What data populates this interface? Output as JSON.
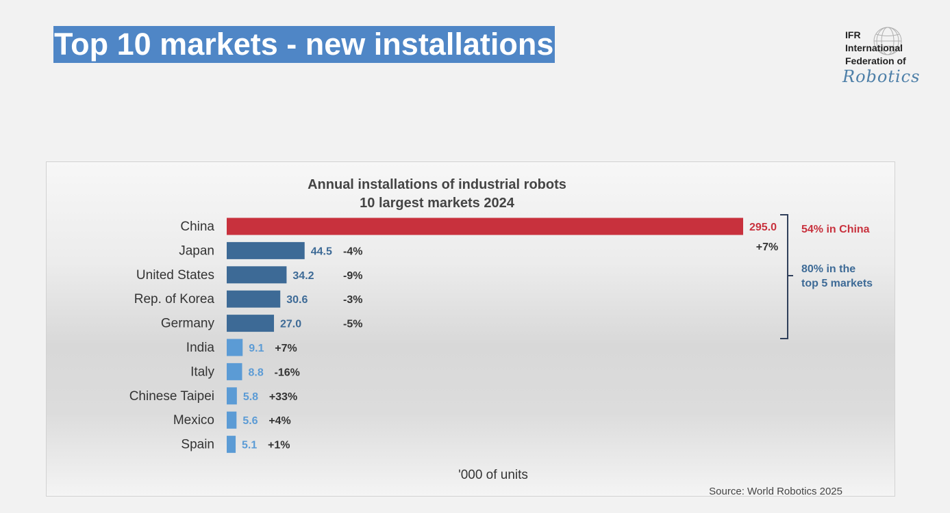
{
  "slide": {
    "title": "Top 10 markets - new installations"
  },
  "logo": {
    "line1": "IFR",
    "line2": "International",
    "line3": "Federation of",
    "line4": "Robotics"
  },
  "colors": {
    "title_bg": "#4f86c6",
    "china_bar": "#c8313d",
    "top5_bar": "#3d6a96",
    "rest_bar": "#5b9bd5",
    "top5_value_text": "#3d6a96",
    "rest_value_text": "#5b9bd5",
    "change_text": "#333333",
    "bracket": "#2f3f5a",
    "note_china": "#c8313d",
    "note_top5": "#3d6a96"
  },
  "chart_data": {
    "type": "bar",
    "orientation": "horizontal",
    "title": "Annual installations of industrial robots",
    "subtitle": "10 largest markets 2024",
    "xlabel": "'000 of units",
    "source": "Source: World Robotics 2025",
    "categories": [
      "China",
      "Japan",
      "United States",
      "Rep. of Korea",
      "Germany",
      "India",
      "Italy",
      "Chinese Taipei",
      "Mexico",
      "Spain"
    ],
    "values": [
      295.0,
      44.5,
      34.2,
      30.6,
      27.0,
      9.1,
      8.8,
      5.8,
      5.6,
      5.1
    ],
    "value_labels": [
      "295.0",
      "44.5",
      "34.2",
      "30.6",
      "27.0",
      "9.1",
      "8.8",
      "5.8",
      "5.6",
      "5.1"
    ],
    "changes": [
      "+7%",
      "-4%",
      "-9%",
      "-3%",
      "-5%",
      "+7%",
      "-16%",
      "+33%",
      "+4%",
      "+1%"
    ],
    "groups": [
      "china",
      "top5",
      "top5",
      "top5",
      "top5",
      "rest",
      "rest",
      "rest",
      "rest",
      "rest"
    ],
    "xlim": [
      0,
      295
    ],
    "annotations": {
      "china_share": "54% in China",
      "top5_share_line1": "80% in the",
      "top5_share_line2": "top 5 markets"
    }
  }
}
